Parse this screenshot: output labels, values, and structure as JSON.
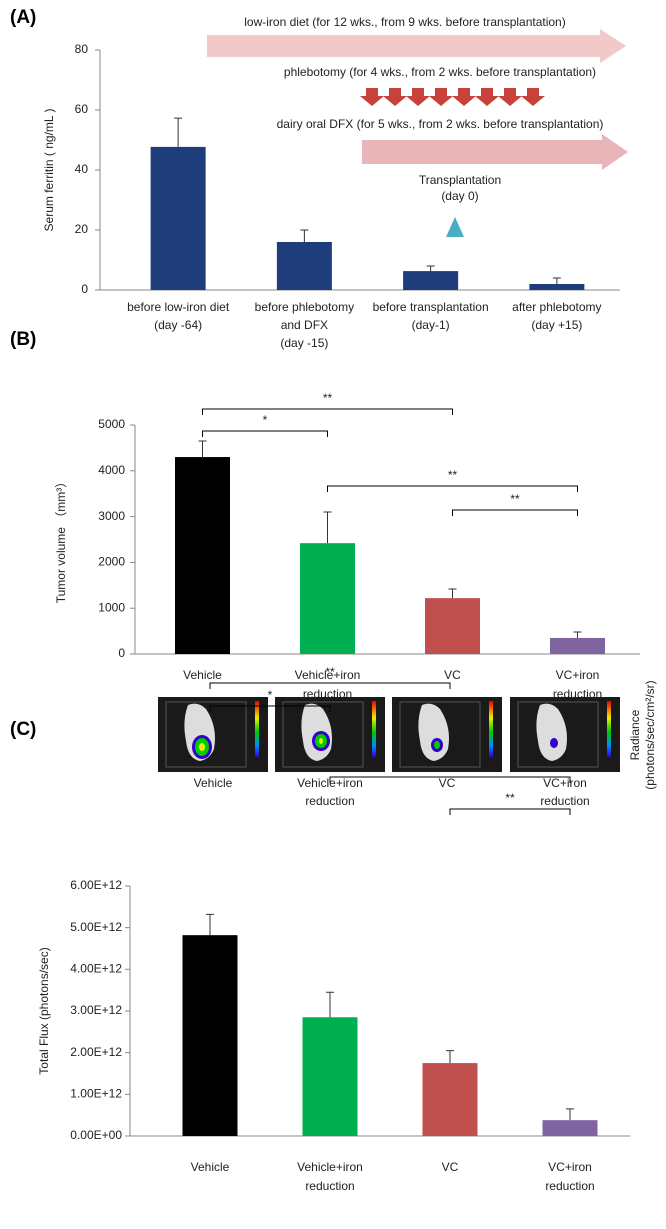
{
  "chart_data": [
    {
      "type": "bar",
      "label": "(A)",
      "ylabel": "Serum ferritin ( ng/mL )",
      "categories": [
        [
          "before low-iron diet",
          "(day -64)"
        ],
        [
          "before phlebotomy",
          "and DFX",
          "(day -15)"
        ],
        [
          "before transplantation",
          "(day-1)"
        ],
        [
          "after phlebotomy",
          "(day +15)"
        ]
      ],
      "values": [
        47.7,
        16,
        6.3,
        2
      ],
      "errors": [
        9.6,
        4,
        1.7,
        2
      ],
      "colors": [
        "#1f3d7a",
        "#1f3d7a",
        "#1f3d7a",
        "#1f3d7a"
      ],
      "ylim": [
        0,
        80
      ],
      "yticks": [
        0,
        20,
        40,
        60,
        80
      ],
      "annotations": [
        "low-iron diet (for 12 wks., from 9 wks. before transplantation)",
        "phlebotomy (for 4 wks., from 2 wks. before transplantation)",
        "dairy oral DFX (for 5 wks., from 2 wks. before transplantation)",
        "Transplantation",
        "(day 0)"
      ]
    },
    {
      "type": "bar",
      "label": "(B)",
      "ylabel": "Tumor volume （mm³）",
      "categories": [
        [
          "Vehicle"
        ],
        [
          "Vehicle+iron",
          "reduction"
        ],
        [
          "VC"
        ],
        [
          "VC+iron",
          "reduction"
        ]
      ],
      "values": [
        4300,
        2420,
        1220,
        350
      ],
      "errors": [
        350,
        680,
        200,
        130
      ],
      "colors": [
        "#000000",
        "#00b050",
        "#c0504d",
        "#8064a2"
      ],
      "ylim": [
        0,
        5000
      ],
      "yticks": [
        0,
        1000,
        2000,
        3000,
        4000,
        5000
      ],
      "brackets": [
        "*",
        "**",
        "**",
        "**"
      ]
    },
    {
      "type": "bar",
      "label": "(C)",
      "ylabel": "Total Flux (photons/sec)",
      "image_labels": [
        [
          "Vehicle"
        ],
        [
          "Vehicle+iron",
          "reduction"
        ],
        [
          "VC"
        ],
        [
          "VC+iron",
          "reduction"
        ]
      ],
      "image_legend": [
        "Radiance",
        "(photons/sec/cm²/sr)"
      ],
      "categories": [
        [
          "Vehicle"
        ],
        [
          "Vehicle+iron",
          "reduction"
        ],
        [
          "VC"
        ],
        [
          "VC+iron",
          "reduction"
        ]
      ],
      "values": [
        4820000000000,
        2850000000000,
        1750000000000,
        380000000000
      ],
      "errors": [
        500000000000,
        600000000000,
        300000000000,
        270000000000
      ],
      "colors": [
        "#000000",
        "#00b050",
        "#c0504d",
        "#8064a2"
      ],
      "ylim": [
        0,
        6000000000000
      ],
      "yticks": [
        {
          "value": 0,
          "label": "0.00E+00"
        },
        {
          "value": 1000000000000,
          "label": "1.00E+12"
        },
        {
          "value": 2000000000000,
          "label": "2.00E+12"
        },
        {
          "value": 3000000000000,
          "label": "3.00E+12"
        },
        {
          "value": 4000000000000,
          "label": "4.00E+12"
        },
        {
          "value": 5000000000000,
          "label": "5.00E+12"
        },
        {
          "value": 6000000000000,
          "label": "6.00E+12"
        }
      ],
      "brackets": [
        "*",
        "**",
        "**",
        "**"
      ]
    }
  ]
}
